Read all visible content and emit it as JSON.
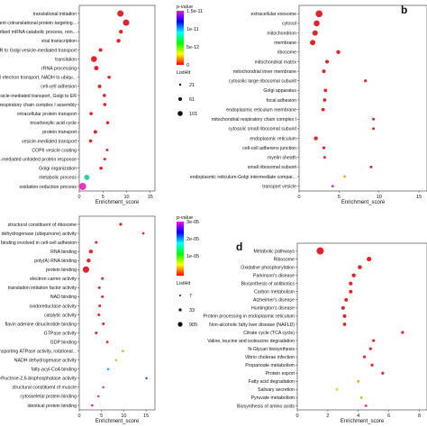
{
  "chart_data": [
    {
      "panel_label": "",
      "type": "scatter",
      "xlabel": "Enrichment_score",
      "xticks": [
        0,
        5,
        10,
        15
      ],
      "xlim": [
        0,
        16
      ],
      "legend": {
        "color_title": "p-value",
        "color_ticks": [
          "1.5e-11",
          "1e-11",
          "5e-12",
          "0"
        ],
        "size_title": "ListHit",
        "size_ticks": [
          "21",
          "61",
          "101"
        ]
      },
      "categories": [
        "translational initiation",
        "SRP-dependent cotranslational protein targeting...",
        "nuclear-transcribed mRNA catabolic process, non...",
        "viral transcription",
        "ER to Golgi vesicle-mediated transport",
        "translation",
        "rRNA processing",
        "mitochondrial electron transport, NADH to ubiqu...",
        "cell-cell adhesion",
        "retrograde vesicle-mediated transport, Golgi to ER",
        "mitochondrial respiratory chain complex I assembly",
        "intracellular protein transport",
        "tricarboxylic acid cycle",
        "protein transport",
        "vesicle-mediated transport",
        "COPII vesicle coating",
        "IRE1-mediated unfolded protein response",
        "Golgi organization",
        "metabolic process",
        "oxidation-reduction process"
      ],
      "series": [
        {
          "x": [
            8.7,
            9.9,
            8.8,
            8.3,
            4.5,
            3.1,
            3.6,
            6.3,
            4.3,
            5.3,
            5.4,
            2.5,
            6.0,
            3.4,
            2.4,
            5.9,
            5.4,
            4.6,
            1.6,
            0.7
          ],
          "color": [
            "#e0242c",
            "#e0242c",
            "#e0242c",
            "#e0242c",
            "#e0242c",
            "#e0242c",
            "#e0242c",
            "#e0242c",
            "#e0242c",
            "#e0242c",
            "#e0242c",
            "#e0242c",
            "#e0242c",
            "#e0242c",
            "#e0242c",
            "#e0242c",
            "#e0242c",
            "#e0242c",
            "#2fd1a8",
            "#e23bc2"
          ],
          "size": [
            3.5,
            3.5,
            2.2,
            2.2,
            2.0,
            3.3,
            2.5,
            1.8,
            2.0,
            1.8,
            1.8,
            1.8,
            1.8,
            2.0,
            1.8,
            1.5,
            1.5,
            1.8,
            3.0,
            4.0
          ]
        }
      ]
    },
    {
      "panel_label": "b",
      "type": "scatter",
      "xlabel": "Enrichment_score",
      "xticks": [
        0,
        5,
        10,
        15
      ],
      "xlim": [
        0,
        16
      ],
      "categories": [
        "extracellular exosome",
        "cytosol",
        "mitochondrion",
        "membrane",
        "ribosome",
        "mitochondrial matrix",
        "mitochondrial inner membrane",
        "cytosolic large ribosomal subunit",
        "Golgi apparatus",
        "focal adhesion",
        "endoplasmic reticulum membrane",
        "mitochondrial respiratory chain complex I",
        "cytosolic small ribosomal subunit",
        "endoplasmic reticulum",
        "cell-cell adherens junction",
        "myelin sheath",
        "small ribosomal subunit",
        "endoplasmic reticulum-Golgi intermediate compar...",
        "transport vesicle"
      ],
      "series": [
        {
          "x": [
            2.5,
            2.2,
            2.0,
            1.7,
            4.9,
            3.5,
            3.1,
            8.3,
            3.3,
            3.2,
            3.0,
            9.3,
            9.3,
            2.1,
            3.1,
            3.2,
            9.0,
            5.7,
            4.2
          ],
          "color": [
            "#e0242c",
            "#e0242c",
            "#e0242c",
            "#e0242c",
            "#e0242c",
            "#e0242c",
            "#e0242c",
            "#e0242c",
            "#e0242c",
            "#e0242c",
            "#e0242c",
            "#e0242c",
            "#e0242c",
            "#e0242c",
            "#e0242c",
            "#e0242c",
            "#e0242c",
            "#f2a51a",
            "#c22fd8"
          ],
          "size": [
            3.8,
            3.3,
            3.0,
            3.0,
            2.2,
            2.0,
            2.0,
            1.6,
            1.9,
            1.9,
            1.9,
            1.5,
            1.5,
            2.2,
            1.6,
            1.5,
            1.5,
            1.4,
            1.4
          ]
        }
      ]
    },
    {
      "panel_label": "",
      "type": "scatter",
      "xlabel": "Enrichment_score",
      "xticks": [
        0,
        5,
        10,
        15
      ],
      "xlim": [
        0,
        17
      ],
      "legend": {
        "color_title": "p-value",
        "color_ticks": [
          "3e-05",
          "2e-05",
          "1e-05"
        ],
        "size_title": "ListHit",
        "size_ticks": [
          "7",
          "33",
          "905"
        ]
      },
      "categories": [
        "structural constituent of ribosome",
        "NADH dehydrogenase (ubiquinone) activity",
        "cadherin binding involved in cell-cell adhesion",
        "RNA binding",
        "poly(A) RNA binding",
        "protein binding",
        "electron carrier activity",
        "translation initiation factor activity",
        "NAD binding",
        "oxidoreductase activity",
        "catalytic activity",
        "flavin adenine dinucleotide binding",
        "GTPase activity",
        "GDP binding",
        "proton-transporting ATPase activity, rotational...",
        "NADH dehydrogenase activity",
        "fatty-acyl-CoA binding",
        "6-phosphofructo-2-kinase/fructose-2,6-bisphosphatase activity",
        "structural constituent of muscle",
        "cytoskeletal protein binding",
        "identical protein binding"
      ],
      "series": [
        {
          "x": [
            9.3,
            14.4,
            3.8,
            2.6,
            2.1,
            1.5,
            5.2,
            4.5,
            5.2,
            4.6,
            4.4,
            5.4,
            3.8,
            6.3,
            9.8,
            8.3,
            6.5,
            15.1,
            5.4,
            4.3,
            2.9
          ],
          "color": [
            "#e0242c",
            "#e0242c",
            "#e0242c",
            "#e0242c",
            "#e0242c",
            "#e0242c",
            "#e0242c",
            "#e0242c",
            "#e0242c",
            "#e0242c",
            "#e0242c",
            "#e0242c",
            "#e0242c",
            "#e0242c",
            "#f2a51a",
            "#b8d21a",
            "#1ab2e0",
            "#2a3fd0",
            "#e23bc2",
            "#e23bc2",
            "#c22fd8"
          ],
          "size": [
            1.6,
            1.3,
            1.5,
            2.2,
            2.2,
            3.6,
            1.5,
            1.5,
            1.5,
            1.5,
            1.5,
            1.5,
            1.5,
            1.4,
            1.3,
            1.3,
            1.3,
            1.2,
            1.3,
            1.3,
            1.4
          ]
        }
      ]
    },
    {
      "panel_label": "d",
      "type": "scatter",
      "xlabel": "Enrichment_score",
      "xticks": [
        0,
        2,
        4,
        6,
        8
      ],
      "xlim": [
        0,
        8.5
      ],
      "categories": [
        "Metabolic pathways",
        "Ribosome",
        "Oxidative phosphorylation",
        "Parkinson's disease",
        "Biosynthesis of antibiotics",
        "Carbon metabolism",
        "Alzheimer's disease",
        "Huntington's disease",
        "Protein processing in endoplasmic reticulum",
        "Non-alcoholic fatty liver disease (NAFLD)",
        "Citrate cycle (TCA cycle)",
        "Valine, leucine and isoleucine degradation",
        "N-Glycan biosynthesis",
        "Vibrio cholerae infection",
        "Propanoate metabolism",
        "Protein export",
        "Fatty acid degradation",
        "Salivary secretion",
        "Pyruvate metabolism",
        "Biosynthesis of amino acids"
      ],
      "series": [
        {
          "x": [
            1.5,
            4.7,
            4.1,
            3.7,
            3.5,
            3.5,
            3.2,
            3.0,
            3.1,
            3.1,
            6.9,
            5.0,
            4.8,
            4.4,
            4.9,
            5.6,
            4.0,
            2.6,
            4.2,
            4.5
          ],
          "color": [
            "#e0242c",
            "#e0242c",
            "#e0242c",
            "#e0242c",
            "#e0242c",
            "#e0242c",
            "#e0242c",
            "#e0242c",
            "#e0242c",
            "#e0242c",
            "#e0242c",
            "#e0242c",
            "#e0242c",
            "#e0242c",
            "#e0242c",
            "#e0242c",
            "#f2a51a",
            "#e8d84a",
            "#b8d21a",
            "#e23bc2"
          ],
          "size": [
            4.0,
            2.6,
            2.3,
            2.2,
            2.1,
            2.0,
            2.0,
            2.0,
            2.0,
            1.9,
            1.6,
            1.6,
            1.6,
            1.6,
            1.6,
            1.6,
            1.5,
            1.6,
            1.5,
            1.5
          ]
        }
      ]
    }
  ]
}
